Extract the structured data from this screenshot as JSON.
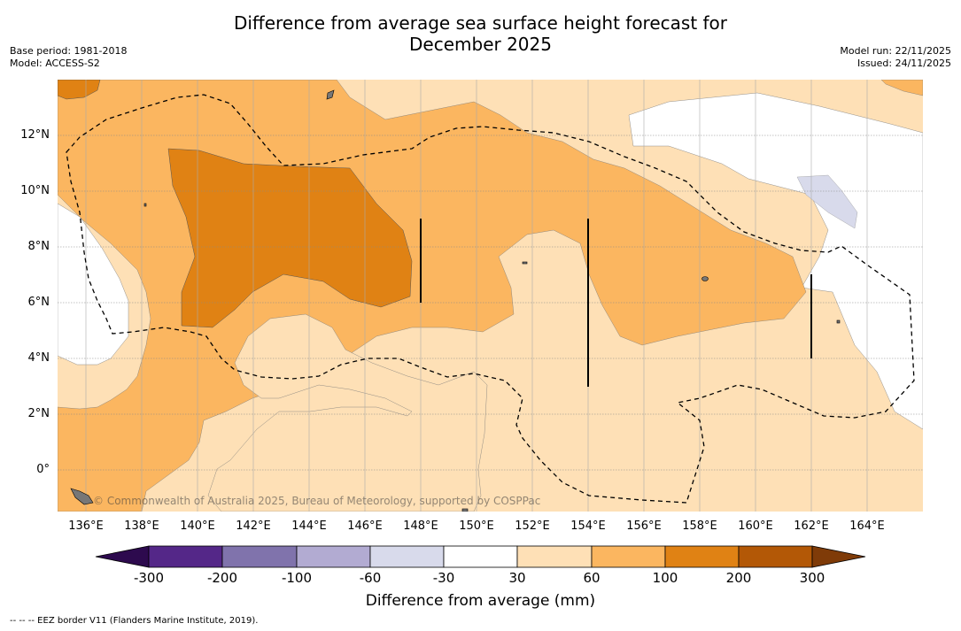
{
  "title": {
    "line1": "Difference from average sea surface height forecast for",
    "line2": "December 2025"
  },
  "meta": {
    "base_period": "Base period: 1981-2018",
    "model": "Model: ACCESS-S2",
    "model_run": "Model run: 22/11/2025",
    "issued": "Issued: 24/11/2025"
  },
  "map": {
    "lat_ticks": [
      "12°N",
      "10°N",
      "8°N",
      "6°N",
      "4°N",
      "2°N",
      "0°"
    ],
    "lon_ticks": [
      "136°E",
      "138°E",
      "140°E",
      "142°E",
      "144°E",
      "146°E",
      "148°E",
      "150°E",
      "152°E",
      "154°E",
      "156°E",
      "158°E",
      "160°E",
      "162°E",
      "164°E"
    ],
    "watermark": "© Commonwealth of Australia 2025, Bureau of Meteorology, supported by COSPPac",
    "colors": {
      "lt_minus300": "#2d0a4e",
      "minus300_200": "#542788",
      "minus200_100": "#8073ac",
      "minus100_60": "#b2abd2",
      "minus60_30": "#d8daeb",
      "minus30_30": "#ffffff",
      "p30_60": "#fee0b6",
      "p60_100": "#fbb660",
      "p100_200": "#e08214",
      "p200_300": "#b35806",
      "gt_300": "#7f3b08"
    }
  },
  "colorbar": {
    "labels": [
      "-300",
      "-200",
      "-100",
      "-60",
      "-30",
      "30",
      "60",
      "100",
      "200",
      "300"
    ],
    "title": "Difference from average (mm)"
  },
  "footnote": "-- -- -- EEZ border V11 (Flanders Marine Institute, 2019)."
}
